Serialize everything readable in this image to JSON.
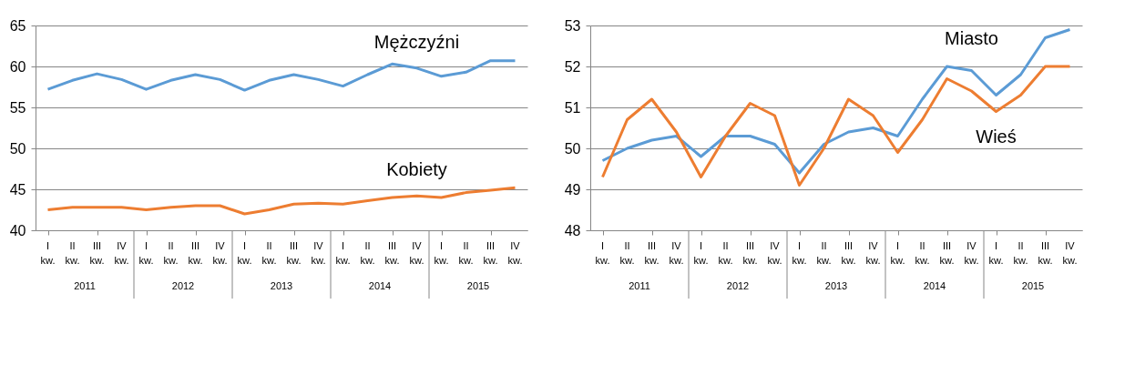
{
  "chart_data": [
    {
      "type": "line",
      "categories": [
        "I kw.",
        "II kw.",
        "III kw.",
        "IV kw.",
        "I kw.",
        "II kw.",
        "III kw.",
        "IV kw.",
        "I kw.",
        "II kw.",
        "III kw.",
        "IV kw.",
        "I kw.",
        "II kw.",
        "III kw.",
        "IV kw.",
        "I kw.",
        "II kw.",
        "III kw.",
        "IV kw."
      ],
      "series": [
        {
          "name": "Mężczyźni",
          "color": "#5b9bd5",
          "values": [
            57.2,
            58.3,
            59.1,
            58.4,
            57.2,
            58.3,
            59.0,
            58.4,
            57.1,
            58.3,
            59.0,
            58.4,
            57.6,
            59.0,
            60.3,
            59.8,
            58.8,
            59.3,
            60.7,
            60.7
          ]
        },
        {
          "name": "Kobiety",
          "color": "#ed7d31",
          "values": [
            42.5,
            42.8,
            42.8,
            42.8,
            42.5,
            42.8,
            43.0,
            43.0,
            42.0,
            42.5,
            43.2,
            43.3,
            43.2,
            43.6,
            44.0,
            44.2,
            44.0,
            44.6,
            44.9,
            45.2
          ]
        }
      ],
      "annotations": [
        "2011",
        "2012",
        "2013",
        "2014",
        "2015"
      ],
      "ylim": [
        40,
        65
      ],
      "yticks": [
        40,
        45,
        50,
        55,
        60,
        65
      ],
      "grid": "y"
    },
    {
      "type": "line",
      "categories": [
        "I kw.",
        "II kw.",
        "III kw.",
        "IV kw.",
        "I kw.",
        "II kw.",
        "III kw.",
        "IV kw.",
        "I kw.",
        "II kw.",
        "III kw.",
        "IV kw.",
        "I kw.",
        "II kw.",
        "III kw.",
        "IV kw.",
        "I kw.",
        "II kw.",
        "III kw.",
        "IV kw."
      ],
      "series": [
        {
          "name": "Miasto",
          "color": "#5b9bd5",
          "values": [
            49.7,
            50.0,
            50.2,
            50.3,
            49.8,
            50.3,
            50.3,
            50.1,
            49.4,
            50.1,
            50.4,
            50.5,
            50.3,
            51.2,
            52.0,
            51.9,
            51.3,
            51.8,
            52.7,
            52.9
          ]
        },
        {
          "name": "Wieś",
          "color": "#ed7d31",
          "values": [
            49.3,
            50.7,
            51.2,
            50.4,
            49.3,
            50.3,
            51.1,
            50.8,
            49.1,
            50.0,
            51.2,
            50.8,
            49.9,
            50.7,
            51.7,
            51.4,
            50.9,
            51.3,
            52.0,
            52.0
          ]
        }
      ],
      "annotations": [
        "2011",
        "2012",
        "2013",
        "2014",
        "2015"
      ],
      "ylim": [
        48,
        53
      ],
      "yticks": [
        48,
        49,
        50,
        51,
        52,
        53
      ],
      "grid": "y"
    }
  ]
}
